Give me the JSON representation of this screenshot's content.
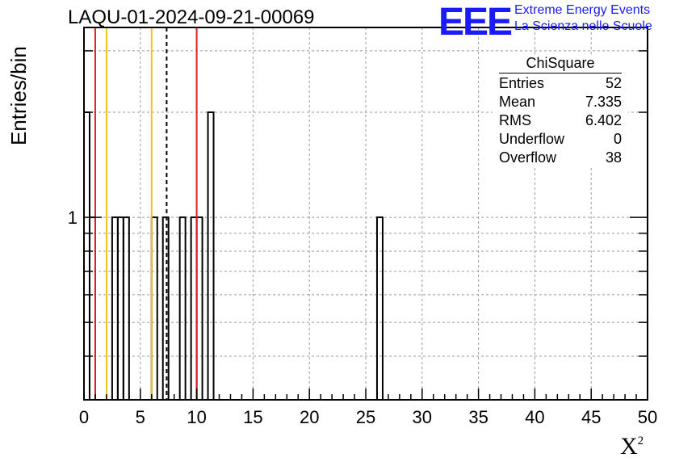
{
  "header": {
    "title": "LAQU-01-2024-09-21-00069",
    "logo_text": "EEE",
    "logo_line1": "Extreme Energy Events",
    "logo_line2": "La Scienza nelle Scuole"
  },
  "stats": {
    "name": "ChiSquare",
    "rows": [
      {
        "label": "Entries",
        "value": "52"
      },
      {
        "label": "Mean",
        "value": "7.335"
      },
      {
        "label": "RMS",
        "value": "6.402"
      },
      {
        "label": "Underflow",
        "value": "0"
      },
      {
        "label": "Overflow",
        "value": "38"
      }
    ]
  },
  "chart_data": {
    "type": "bar",
    "title": "LAQU-01-2024-09-21-00069",
    "xlabel": "X",
    "xlabel_sup": "2",
    "ylabel": "Entries/bin",
    "xlim": [
      0,
      50
    ],
    "ylim": [
      0.3,
      3.5
    ],
    "yscale": "log",
    "bin_width": 0.5,
    "x_ticks": [
      "0",
      "5",
      "10",
      "15",
      "20",
      "25",
      "30",
      "35",
      "40",
      "45",
      "50"
    ],
    "y_ticks": [
      "1"
    ],
    "bins": [
      {
        "x": 0.0,
        "value": 2
      },
      {
        "x": 0.5,
        "value": 1
      },
      {
        "x": 2.5,
        "value": 1
      },
      {
        "x": 3.0,
        "value": 1
      },
      {
        "x": 3.5,
        "value": 1
      },
      {
        "x": 6.0,
        "value": 1
      },
      {
        "x": 7.0,
        "value": 1
      },
      {
        "x": 8.5,
        "value": 1
      },
      {
        "x": 9.5,
        "value": 1
      },
      {
        "x": 10.0,
        "value": 1
      },
      {
        "x": 11.0,
        "value": 2
      },
      {
        "x": 26.0,
        "value": 1
      }
    ],
    "vlines": [
      {
        "x": 1.0,
        "color": "#dd2222",
        "style": "solid"
      },
      {
        "x": 2.0,
        "color": "#f2c21b",
        "style": "solid"
      },
      {
        "x": 6.0,
        "color": "#f2c21b",
        "style": "solid"
      },
      {
        "x": 7.335,
        "color": "#000000",
        "style": "dashed"
      },
      {
        "x": 10.0,
        "color": "#dd2222",
        "style": "solid"
      }
    ],
    "grid": true
  }
}
